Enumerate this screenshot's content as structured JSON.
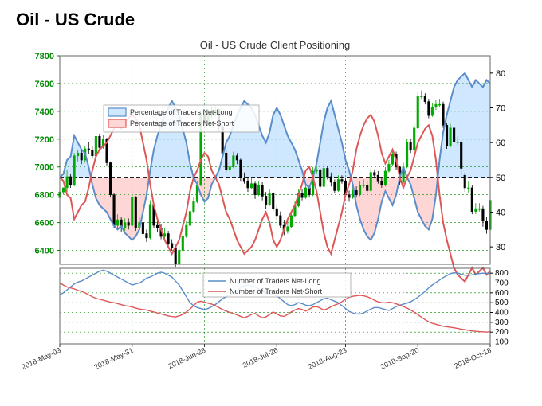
{
  "title": "Oil - US Crude",
  "chart": {
    "title": "Oil - US Crude Client Positioning",
    "title_fontsize": 13,
    "bg_color": "#ffffff",
    "grid_color": "#008800",
    "grid_dash": "2,3",
    "border_color": "#666666",
    "font_family": "Arial, sans-serif",
    "x_dates": [
      "2018-May-03",
      "2018-May-31",
      "2018-Jun-28",
      "2018-Jul-26",
      "2018-Aug-23",
      "2018-Sep-20",
      "2018-Oct-18"
    ],
    "x_tick_fontsize": 9,
    "top_panel": {
      "left_axis": {
        "color": "#008800",
        "fontsize": 11,
        "ticks": [
          6400,
          6600,
          6800,
          7000,
          7200,
          7400,
          7600,
          7800
        ],
        "ylim": [
          6300,
          7800
        ]
      },
      "right_axis": {
        "color": "#000000",
        "fontsize": 11,
        "ticks": [
          30,
          40,
          50,
          60,
          70,
          80
        ],
        "ylim": [
          25,
          85
        ]
      },
      "net_long_area": {
        "color": "#5a8dc9",
        "fill_top": "#d0e8ff",
        "fill_bottom": "#ffd6d6",
        "line_width": 2,
        "values": [
          50,
          51,
          55,
          56,
          62,
          60,
          58,
          57,
          53,
          48,
          44,
          42,
          41,
          40,
          38,
          36,
          35,
          36,
          34,
          33,
          32,
          33,
          35,
          40,
          45,
          52,
          58,
          62,
          65,
          68,
          70,
          72,
          70,
          68,
          64,
          60,
          54,
          50,
          48,
          45,
          43,
          44,
          48,
          50,
          52,
          56,
          60,
          62,
          65,
          68,
          70,
          72,
          71,
          70,
          68,
          65,
          62,
          60,
          63,
          68,
          70,
          68,
          65,
          62,
          60,
          58,
          55,
          52,
          48,
          47,
          50,
          54,
          60,
          66,
          70,
          72,
          68,
          64,
          60,
          55,
          52,
          48,
          42,
          38,
          35,
          33,
          32,
          34,
          38,
          43,
          46,
          44,
          42,
          45,
          50,
          53,
          50,
          48,
          44,
          40,
          38,
          36,
          35,
          38,
          45,
          55,
          63,
          68,
          72,
          76,
          78,
          79,
          80,
          78,
          76,
          78,
          77,
          76,
          78,
          77
        ]
      },
      "candles": {
        "up_color": "#00aa00",
        "down_color": "#000000",
        "wick_color": "#333333",
        "data": [
          [
            6780,
            6820,
            6820,
            6740
          ],
          [
            6820,
            6850,
            6850,
            6800
          ],
          [
            6850,
            6930,
            6980,
            6820
          ],
          [
            6930,
            6870,
            6950,
            6850
          ],
          [
            6870,
            7080,
            7100,
            6860
          ],
          [
            7080,
            7100,
            7120,
            7040
          ],
          [
            7100,
            7050,
            7120,
            7020
          ],
          [
            7050,
            7130,
            7150,
            7030
          ],
          [
            7130,
            7120,
            7180,
            7090
          ],
          [
            7120,
            7080,
            7150,
            7060
          ],
          [
            7080,
            7220,
            7250,
            7070
          ],
          [
            7220,
            7140,
            7240,
            7120
          ],
          [
            7140,
            7200,
            7230,
            7130
          ],
          [
            7200,
            7030,
            7210,
            7010
          ],
          [
            7030,
            6800,
            7040,
            6780
          ],
          [
            6800,
            6580,
            6810,
            6560
          ],
          [
            6580,
            6620,
            6660,
            6560
          ],
          [
            6620,
            6560,
            6640,
            6530
          ],
          [
            6560,
            6600,
            6630,
            6540
          ],
          [
            6600,
            6580,
            6630,
            6550
          ],
          [
            6580,
            6780,
            6800,
            6570
          ],
          [
            6780,
            6560,
            6790,
            6540
          ],
          [
            6560,
            6600,
            6640,
            6540
          ],
          [
            6600,
            6520,
            6620,
            6500
          ],
          [
            6520,
            6490,
            6550,
            6460
          ],
          [
            6490,
            6730,
            6760,
            6480
          ],
          [
            6730,
            6580,
            6740,
            6560
          ],
          [
            6580,
            6560,
            6620,
            6530
          ],
          [
            6560,
            6500,
            6590,
            6480
          ],
          [
            6500,
            6520,
            6560,
            6480
          ],
          [
            6520,
            6450,
            6540,
            6420
          ],
          [
            6450,
            6420,
            6480,
            6400
          ],
          [
            6420,
            6300,
            6440,
            6280
          ],
          [
            6300,
            6400,
            6430,
            6280
          ],
          [
            6400,
            6500,
            6530,
            6390
          ],
          [
            6500,
            6580,
            6610,
            6490
          ],
          [
            6580,
            6680,
            6710,
            6570
          ],
          [
            6680,
            6750,
            6780,
            6670
          ],
          [
            6750,
            6870,
            6900,
            6740
          ],
          [
            6870,
            7380,
            7400,
            6860
          ],
          [
            7380,
            7320,
            7400,
            7280
          ],
          [
            7320,
            7400,
            7420,
            7300
          ],
          [
            7400,
            7380,
            7430,
            7350
          ],
          [
            7380,
            7410,
            7440,
            7360
          ],
          [
            7410,
            7290,
            7420,
            7260
          ],
          [
            7290,
            7100,
            7300,
            7080
          ],
          [
            7100,
            6980,
            7120,
            6960
          ],
          [
            6980,
            7000,
            7040,
            6960
          ],
          [
            7000,
            7080,
            7110,
            6990
          ],
          [
            7080,
            7050,
            7100,
            7020
          ],
          [
            7050,
            6920,
            7060,
            6900
          ],
          [
            6920,
            6900,
            6960,
            6880
          ],
          [
            6900,
            6850,
            6930,
            6820
          ],
          [
            6850,
            6880,
            6920,
            6840
          ],
          [
            6880,
            6800,
            6900,
            6770
          ],
          [
            6800,
            6870,
            6900,
            6790
          ],
          [
            6870,
            6790,
            6890,
            6760
          ],
          [
            6790,
            6730,
            6820,
            6700
          ],
          [
            6730,
            6810,
            6840,
            6720
          ],
          [
            6810,
            6700,
            6820,
            6680
          ],
          [
            6700,
            6650,
            6730,
            6620
          ],
          [
            6650,
            6580,
            6680,
            6560
          ],
          [
            6580,
            6540,
            6620,
            6510
          ],
          [
            6540,
            6570,
            6610,
            6520
          ],
          [
            6570,
            6650,
            6680,
            6560
          ],
          [
            6650,
            6720,
            6750,
            6640
          ],
          [
            6720,
            6810,
            6840,
            6710
          ],
          [
            6810,
            6780,
            6840,
            6760
          ],
          [
            6780,
            6850,
            6880,
            6770
          ],
          [
            6850,
            6800,
            6870,
            6780
          ],
          [
            6800,
            6970,
            7000,
            6790
          ],
          [
            6970,
            6980,
            7020,
            6950
          ],
          [
            6980,
            6860,
            6990,
            6840
          ],
          [
            6860,
            6990,
            7020,
            6850
          ],
          [
            6990,
            6930,
            7010,
            6910
          ],
          [
            6930,
            6890,
            6960,
            6860
          ],
          [
            6890,
            6830,
            6910,
            6810
          ],
          [
            6830,
            6910,
            6940,
            6820
          ],
          [
            6910,
            6900,
            6940,
            6880
          ],
          [
            6900,
            6800,
            6920,
            6780
          ],
          [
            6800,
            6780,
            6830,
            6750
          ],
          [
            6780,
            6830,
            6860,
            6770
          ],
          [
            6830,
            6800,
            6860,
            6780
          ],
          [
            6800,
            6870,
            6900,
            6790
          ],
          [
            6870,
            6870,
            6910,
            6850
          ],
          [
            6870,
            6830,
            6900,
            6810
          ],
          [
            6830,
            6960,
            6990,
            6820
          ],
          [
            6960,
            6940,
            6980,
            6920
          ],
          [
            6940,
            6900,
            6970,
            6880
          ],
          [
            6900,
            6870,
            6930,
            6850
          ],
          [
            6870,
            6970,
            7000,
            6860
          ],
          [
            6970,
            7020,
            7050,
            6960
          ],
          [
            7020,
            7090,
            7120,
            7010
          ],
          [
            7090,
            7000,
            7110,
            6980
          ],
          [
            7000,
            6890,
            7010,
            6870
          ],
          [
            6890,
            7000,
            7030,
            6880
          ],
          [
            7000,
            7180,
            7200,
            6990
          ],
          [
            7180,
            7120,
            7200,
            7100
          ],
          [
            7120,
            7280,
            7310,
            7110
          ],
          [
            7280,
            7510,
            7540,
            7270
          ],
          [
            7510,
            7510,
            7550,
            7490
          ],
          [
            7510,
            7470,
            7530,
            7450
          ],
          [
            7470,
            7370,
            7490,
            7350
          ],
          [
            7370,
            7430,
            7460,
            7360
          ],
          [
            7430,
            7450,
            7480,
            7410
          ],
          [
            7450,
            7450,
            7490,
            7430
          ],
          [
            7450,
            7300,
            7470,
            7280
          ],
          [
            7300,
            7150,
            7320,
            7130
          ],
          [
            7150,
            7280,
            7310,
            7140
          ],
          [
            7280,
            7180,
            7300,
            7160
          ],
          [
            7180,
            7180,
            7220,
            7160
          ],
          [
            7180,
            6990,
            7190,
            6940
          ],
          [
            6940,
            6850,
            6960,
            6820
          ],
          [
            6850,
            6850,
            6900,
            6810
          ],
          [
            6850,
            6680,
            6870,
            6660
          ],
          [
            6680,
            6700,
            6740,
            6660
          ],
          [
            6700,
            6700,
            6740,
            6680
          ],
          [
            6700,
            6610,
            6720,
            6570
          ],
          [
            6610,
            6550,
            6640,
            6520
          ],
          [
            6550,
            6760,
            6790,
            6540
          ]
        ]
      },
      "hline": {
        "value": 50,
        "color": "#000000",
        "dash": "5,3",
        "width": 1.5
      },
      "legend": {
        "items": [
          {
            "label": "Percentage of Traders Net-Long",
            "swatch": "#d0e8ff",
            "line": "#5a8dc9"
          },
          {
            "label": "Percentage of Traders Net-Short",
            "swatch": "#ffd6d6",
            "line": "#de5757"
          }
        ]
      }
    },
    "bottom_panel": {
      "right_axis": {
        "color": "#000000",
        "fontsize": 10,
        "ticks": [
          100,
          200,
          300,
          400,
          500,
          600,
          700,
          800
        ],
        "ylim": [
          80,
          850
        ]
      },
      "long_line": {
        "color": "#5a8dc9",
        "width": 1.4,
        "values": [
          580,
          600,
          630,
          660,
          690,
          710,
          720,
          740,
          760,
          780,
          800,
          820,
          830,
          820,
          800,
          780,
          760,
          740,
          720,
          700,
          680,
          690,
          700,
          720,
          750,
          760,
          780,
          800,
          810,
          800,
          780,
          760,
          720,
          680,
          620,
          560,
          500,
          470,
          450,
          440,
          430,
          440,
          460,
          480,
          510,
          540,
          560,
          580,
          600,
          620,
          650,
          670,
          680,
          670,
          660,
          640,
          620,
          600,
          590,
          580,
          570,
          540,
          510,
          480,
          470,
          480,
          500,
          490,
          475,
          470,
          480,
          500,
          520,
          540,
          545,
          530,
          515,
          500,
          470,
          440,
          410,
          395,
          385,
          385,
          395,
          415,
          435,
          450,
          450,
          440,
          430,
          420,
          440,
          460,
          475,
          485,
          495,
          510,
          530,
          555,
          585,
          615,
          650,
          680,
          705,
          730,
          755,
          775,
          795,
          805,
          800,
          790,
          780,
          778,
          783,
          790,
          796,
          800,
          798,
          795
        ]
      },
      "short_line": {
        "color": "#de5757",
        "width": 1.4,
        "values": [
          700,
          680,
          660,
          650,
          640,
          625,
          615,
          600,
          580,
          560,
          545,
          535,
          525,
          515,
          505,
          500,
          490,
          480,
          470,
          465,
          455,
          445,
          435,
          430,
          425,
          415,
          405,
          395,
          385,
          375,
          365,
          358,
          355,
          365,
          380,
          405,
          435,
          470,
          505,
          515,
          505,
          495,
          485,
          470,
          450,
          430,
          415,
          400,
          390,
          375,
          360,
          345,
          360,
          380,
          390,
          365,
          345,
          355,
          380,
          405,
          385,
          365,
          360,
          380,
          405,
          425,
          440,
          430,
          415,
          435,
          455,
          460,
          445,
          425,
          438,
          458,
          475,
          488,
          510,
          535,
          555,
          565,
          570,
          575,
          570,
          560,
          545,
          525,
          508,
          500,
          498,
          505,
          500,
          488,
          475,
          460,
          445,
          425,
          402,
          378,
          352,
          328,
          305,
          290,
          280,
          270,
          260,
          255,
          250,
          245,
          238,
          230,
          225,
          218,
          212,
          208,
          205,
          203,
          200,
          205
        ]
      },
      "legend": {
        "items": [
          {
            "label": "Number of Traders Net-Long",
            "color": "#5a8dc9"
          },
          {
            "label": "Number of Traders Net-Short",
            "color": "#de5757"
          }
        ]
      }
    }
  }
}
